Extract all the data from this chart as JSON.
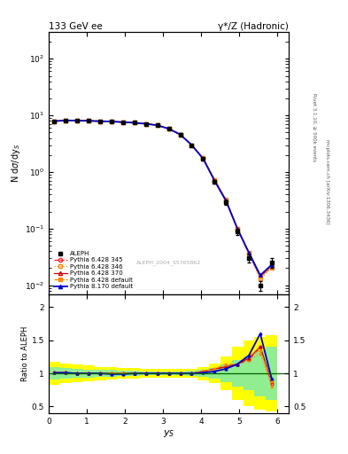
{
  "title_left": "133 GeV ee",
  "title_right": "γ*/Z (Hadronic)",
  "xlabel": "y_S",
  "ylabel_top": "N dσ/dy_S",
  "ylabel_bottom": "Ratio to ALEPH",
  "right_label_top": "Rivet 3.1.10, ≥ 500k events",
  "right_label_bot": "mcplots.cern.ch [arXiv:1306.3436]",
  "ref_label": "ALEPH_2004_S5765862",
  "xlim": [
    0,
    6.3
  ],
  "ylim_top_lo": 0.007,
  "ylim_top_hi": 300,
  "ylim_bottom_lo": 0.4,
  "ylim_bottom_hi": 2.2,
  "data_x": [
    0.15,
    0.45,
    0.75,
    1.05,
    1.35,
    1.65,
    1.95,
    2.25,
    2.55,
    2.85,
    3.15,
    3.45,
    3.75,
    4.05,
    4.35,
    4.65,
    4.95,
    5.25,
    5.55,
    5.85
  ],
  "data_y": [
    7.8,
    8.1,
    8.1,
    8.0,
    7.9,
    7.8,
    7.6,
    7.4,
    7.1,
    6.7,
    5.8,
    4.6,
    3.0,
    1.7,
    0.68,
    0.29,
    0.088,
    0.03,
    0.01,
    0.025
  ],
  "data_yerr": [
    0.3,
    0.2,
    0.2,
    0.2,
    0.2,
    0.2,
    0.2,
    0.2,
    0.2,
    0.2,
    0.2,
    0.2,
    0.1,
    0.1,
    0.05,
    0.03,
    0.01,
    0.005,
    0.002,
    0.005
  ],
  "mc_x": [
    0.15,
    0.45,
    0.75,
    1.05,
    1.35,
    1.65,
    1.95,
    2.25,
    2.55,
    2.85,
    3.15,
    3.45,
    3.75,
    4.05,
    4.35,
    4.65,
    4.95,
    5.25,
    5.55,
    5.85
  ],
  "mc345_y": [
    7.9,
    8.15,
    8.1,
    8.0,
    7.9,
    7.78,
    7.6,
    7.4,
    7.1,
    6.7,
    5.8,
    4.6,
    3.0,
    1.75,
    0.72,
    0.32,
    0.1,
    0.036,
    0.014,
    0.021
  ],
  "mc346_y": [
    7.9,
    8.15,
    8.1,
    8.0,
    7.9,
    7.78,
    7.6,
    7.4,
    7.1,
    6.7,
    5.8,
    4.6,
    3.0,
    1.75,
    0.72,
    0.31,
    0.1,
    0.036,
    0.013,
    0.02
  ],
  "mc370_y": [
    7.9,
    8.15,
    8.1,
    8.0,
    7.9,
    7.78,
    7.6,
    7.4,
    7.1,
    6.7,
    5.8,
    4.6,
    3.0,
    1.75,
    0.73,
    0.32,
    0.1,
    0.037,
    0.014,
    0.022
  ],
  "mcdef_y": [
    7.9,
    8.15,
    8.1,
    8.0,
    7.9,
    7.78,
    7.6,
    7.4,
    7.1,
    6.7,
    5.8,
    4.6,
    3.0,
    1.75,
    0.73,
    0.33,
    0.1,
    0.038,
    0.014,
    0.022
  ],
  "mc8def_y": [
    7.9,
    8.15,
    8.1,
    8.0,
    7.9,
    7.78,
    7.6,
    7.4,
    7.1,
    6.7,
    5.8,
    4.6,
    3.0,
    1.72,
    0.7,
    0.31,
    0.1,
    0.038,
    0.015,
    0.023
  ],
  "ratio345": [
    1.01,
    1.01,
    1.0,
    1.0,
    1.0,
    1.0,
    1.0,
    1.0,
    1.0,
    1.0,
    1.0,
    1.0,
    1.0,
    1.03,
    1.06,
    1.1,
    1.14,
    1.2,
    1.4,
    0.84
  ],
  "ratio346": [
    1.01,
    1.01,
    1.0,
    1.0,
    1.0,
    1.0,
    1.0,
    1.0,
    1.0,
    1.0,
    1.0,
    1.0,
    1.0,
    1.03,
    1.06,
    1.07,
    1.14,
    1.2,
    1.3,
    0.8
  ],
  "ratio370": [
    1.01,
    1.01,
    1.0,
    1.0,
    1.0,
    1.0,
    1.0,
    1.0,
    1.0,
    1.0,
    1.0,
    1.0,
    1.0,
    1.03,
    1.07,
    1.1,
    1.14,
    1.23,
    1.4,
    0.88
  ],
  "ratiodef": [
    1.01,
    1.01,
    1.0,
    1.0,
    1.0,
    1.0,
    1.0,
    1.0,
    1.0,
    1.0,
    1.0,
    1.0,
    1.0,
    1.03,
    1.07,
    1.14,
    1.14,
    1.27,
    1.35,
    0.88
  ],
  "ratio8def": [
    1.01,
    1.01,
    1.0,
    1.0,
    1.0,
    0.99,
    0.99,
    1.0,
    1.0,
    1.0,
    1.0,
    1.0,
    1.0,
    1.01,
    1.03,
    1.07,
    1.14,
    1.27,
    1.6,
    0.92
  ],
  "band_x_edges": [
    0.0,
    0.3,
    0.6,
    0.9,
    1.2,
    1.5,
    1.8,
    2.1,
    2.4,
    2.7,
    3.0,
    3.3,
    3.6,
    3.9,
    4.2,
    4.5,
    4.8,
    5.1,
    5.4,
    5.7,
    6.0
  ],
  "band_yellow_lo": [
    0.83,
    0.85,
    0.87,
    0.88,
    0.9,
    0.91,
    0.92,
    0.92,
    0.93,
    0.93,
    0.93,
    0.93,
    0.93,
    0.9,
    0.85,
    0.75,
    0.6,
    0.5,
    0.45,
    0.42
  ],
  "band_yellow_hi": [
    1.17,
    1.15,
    1.13,
    1.12,
    1.1,
    1.09,
    1.08,
    1.08,
    1.07,
    1.07,
    1.07,
    1.07,
    1.07,
    1.1,
    1.15,
    1.25,
    1.4,
    1.5,
    1.55,
    1.58
  ],
  "band_green_lo": [
    0.91,
    0.92,
    0.93,
    0.94,
    0.95,
    0.95,
    0.96,
    0.96,
    0.97,
    0.97,
    0.97,
    0.97,
    0.96,
    0.95,
    0.92,
    0.87,
    0.8,
    0.75,
    0.65,
    0.6
  ],
  "band_green_hi": [
    1.09,
    1.08,
    1.07,
    1.06,
    1.05,
    1.05,
    1.04,
    1.04,
    1.03,
    1.03,
    1.03,
    1.03,
    1.04,
    1.05,
    1.08,
    1.13,
    1.2,
    1.25,
    1.35,
    1.4
  ],
  "color_345": "#ff2222",
  "color_346": "#ff8800",
  "color_370": "#cc0000",
  "color_def": "#ff8800",
  "color_8def": "#0000cc",
  "legend_entries": [
    "ALEPH",
    "Pythia 6.428 345",
    "Pythia 6.428 346",
    "Pythia 6.428 370",
    "Pythia 6.428 default",
    "Pythia 8.170 default"
  ]
}
